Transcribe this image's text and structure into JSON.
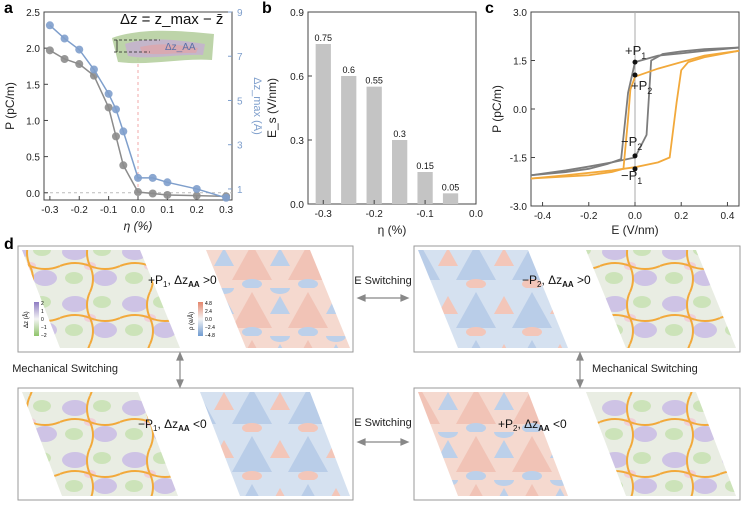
{
  "panels": {
    "a": {
      "label": "a",
      "inset_formula": "Δz = z_max − z̄",
      "inset_label": "Δz_AA",
      "chart_data": {
        "type": "line",
        "xlabel": "η (%)",
        "ylabel": "P (pC/m)",
        "y2label": "Δz_max (Å)",
        "xlim": [
          -0.32,
          0.32
        ],
        "ylim": [
          -0.1,
          2.5
        ],
        "y2lim": [
          0.5,
          9
        ],
        "xticks": [
          "-0.3",
          "-0.2",
          "-0.1",
          "0.0",
          "0.1",
          "0.2",
          "0.3"
        ],
        "yticks": [
          "0.0",
          "0.5",
          "1.0",
          "1.5",
          "2.0",
          "2.5"
        ],
        "y2ticks": [
          "1",
          "3",
          "5",
          "7",
          "9"
        ],
        "series": [
          {
            "name": "P",
            "axis": "left",
            "color": "#8c8c8c",
            "x": [
              -0.3,
              -0.25,
              -0.2,
              -0.15,
              -0.1,
              -0.075,
              -0.05,
              0.0,
              0.05,
              0.1,
              0.2,
              0.3
            ],
            "y": [
              1.97,
              1.85,
              1.78,
              1.62,
              1.18,
              0.78,
              0.38,
              0.01,
              -0.01,
              -0.03,
              -0.04,
              -0.05
            ]
          },
          {
            "name": "Δz_max",
            "axis": "right",
            "color": "#7f9fcc",
            "x": [
              -0.3,
              -0.25,
              -0.2,
              -0.15,
              -0.1,
              -0.075,
              -0.05,
              0.0,
              0.05,
              0.1,
              0.2,
              0.3
            ],
            "y": [
              8.4,
              7.8,
              7.3,
              6.4,
              5.3,
              4.6,
              3.6,
              1.5,
              1.5,
              1.3,
              1.0,
              0.6
            ]
          }
        ]
      }
    },
    "b": {
      "label": "b",
      "chart_data": {
        "type": "bar",
        "xlabel": "η (%)",
        "ylabel": "E_s (V/nm)",
        "x": [
          -0.3,
          -0.25,
          -0.2,
          -0.15,
          -0.1,
          -0.05
        ],
        "values": [
          0.75,
          0.6,
          0.55,
          0.3,
          0.15,
          0.05
        ],
        "value_labels": [
          "0.75",
          "0.6",
          "0.55",
          "0.3",
          "0.15",
          "0.05"
        ],
        "xlim": [
          -0.33,
          0.0
        ],
        "ylim": [
          0,
          0.9
        ],
        "xticks": [
          "-0.3",
          "-0.2",
          "-0.1",
          "0.0"
        ],
        "yticks": [
          "0.0",
          "0.3",
          "0.6",
          "0.9"
        ],
        "color": "#c4c4c4"
      }
    },
    "c": {
      "label": "c",
      "chart_data": {
        "type": "line",
        "xlabel": "E (V/nm)",
        "ylabel": "P (pC/m)",
        "xlim": [
          -0.45,
          0.45
        ],
        "ylim": [
          -3.0,
          3.0
        ],
        "xticks": [
          "-0.4",
          "-0.2",
          "0.0",
          "0.2",
          "0.4"
        ],
        "yticks": [
          "-3.0",
          "-1.5",
          "0.0",
          "1.5",
          "3.0"
        ],
        "annotations": [
          "+P",
          "1",
          "+P",
          "2",
          "−P",
          "2",
          "−P",
          "1"
        ],
        "series": [
          {
            "name": "gray loop up",
            "color": "#7d7d7d",
            "x": [
              -0.45,
              -0.3,
              -0.2,
              -0.12,
              -0.06,
              -0.03,
              0.0,
              0.05,
              0.1,
              0.2,
              0.3,
              0.45
            ],
            "y": [
              -2.05,
              -1.95,
              -1.85,
              -1.7,
              -1.55,
              0.5,
              1.45,
              1.55,
              1.65,
              1.72,
              1.8,
              1.9
            ]
          },
          {
            "name": "gray loop down",
            "color": "#7d7d7d",
            "x": [
              0.45,
              0.3,
              0.2,
              0.12,
              0.07,
              0.05,
              0.0,
              -0.1,
              -0.2,
              -0.3,
              -0.45
            ],
            "y": [
              1.9,
              1.85,
              1.78,
              1.7,
              1.5,
              -0.8,
              -1.5,
              -1.65,
              -1.78,
              -1.9,
              -2.05
            ]
          },
          {
            "name": "orange loop up",
            "color": "#f2a93b",
            "x": [
              -0.45,
              -0.3,
              -0.1,
              0.0,
              0.1,
              0.15,
              0.18,
              0.2,
              0.23,
              0.3,
              0.45
            ],
            "y": [
              -2.15,
              -2.05,
              -1.9,
              -1.8,
              -1.65,
              -1.5,
              0.2,
              1.2,
              1.45,
              1.6,
              1.8
            ]
          },
          {
            "name": "orange loop down",
            "color": "#f2a93b",
            "x": [
              0.45,
              0.3,
              0.1,
              0.0,
              -0.02,
              -0.03,
              -0.05,
              -0.1,
              -0.2,
              -0.45
            ],
            "y": [
              1.8,
              1.65,
              1.25,
              1.0,
              0.6,
              -0.3,
              -1.85,
              -1.95,
              -2.05,
              -2.15
            ]
          }
        ]
      }
    },
    "d": {
      "label": "d",
      "states": {
        "top_left": {
          "pol": "+P",
          "sub": "1",
          "cond": ", Δz",
          "cond_sub": "AA",
          "cond_rel": " >0"
        },
        "top_right": {
          "pol": "−P",
          "sub": "2",
          "cond": ", Δz",
          "cond_sub": "AA",
          "cond_rel": " >0"
        },
        "bottom_left": {
          "pol": "−P",
          "sub": "1",
          "cond": ", Δz",
          "cond_sub": "AA",
          "cond_rel": " <0"
        },
        "bottom_right": {
          "pol": "+P",
          "sub": "2",
          "cond": ", Δz",
          "cond_sub": "AA",
          "cond_rel": " <0"
        }
      },
      "switch_labels": {
        "e_top": "E Switching",
        "e_bottom": "E Switching",
        "mech_left": "Mechanical Switching",
        "mech_right": "Mechanical Switching"
      },
      "colorbar_dz": {
        "title": "Δz (Å)",
        "ticks": [
          "2",
          "1",
          "0",
          "−1",
          "−2"
        ]
      },
      "colorbar_rho": {
        "title": "ρ (e/Å)",
        "ticks": [
          "4.8",
          "2.4",
          "0.0",
          "−2.4",
          "−4.8"
        ]
      }
    }
  },
  "colors": {
    "gray": "#8c8c8c",
    "blue": "#7f9fcc",
    "orange": "#f2a93b",
    "bar": "#c4c4c4",
    "red_map": "#f3c2b6",
    "blue_map": "#b8cbe6",
    "green_map": "#cfe6bd",
    "purple_map": "#c9bde3"
  }
}
